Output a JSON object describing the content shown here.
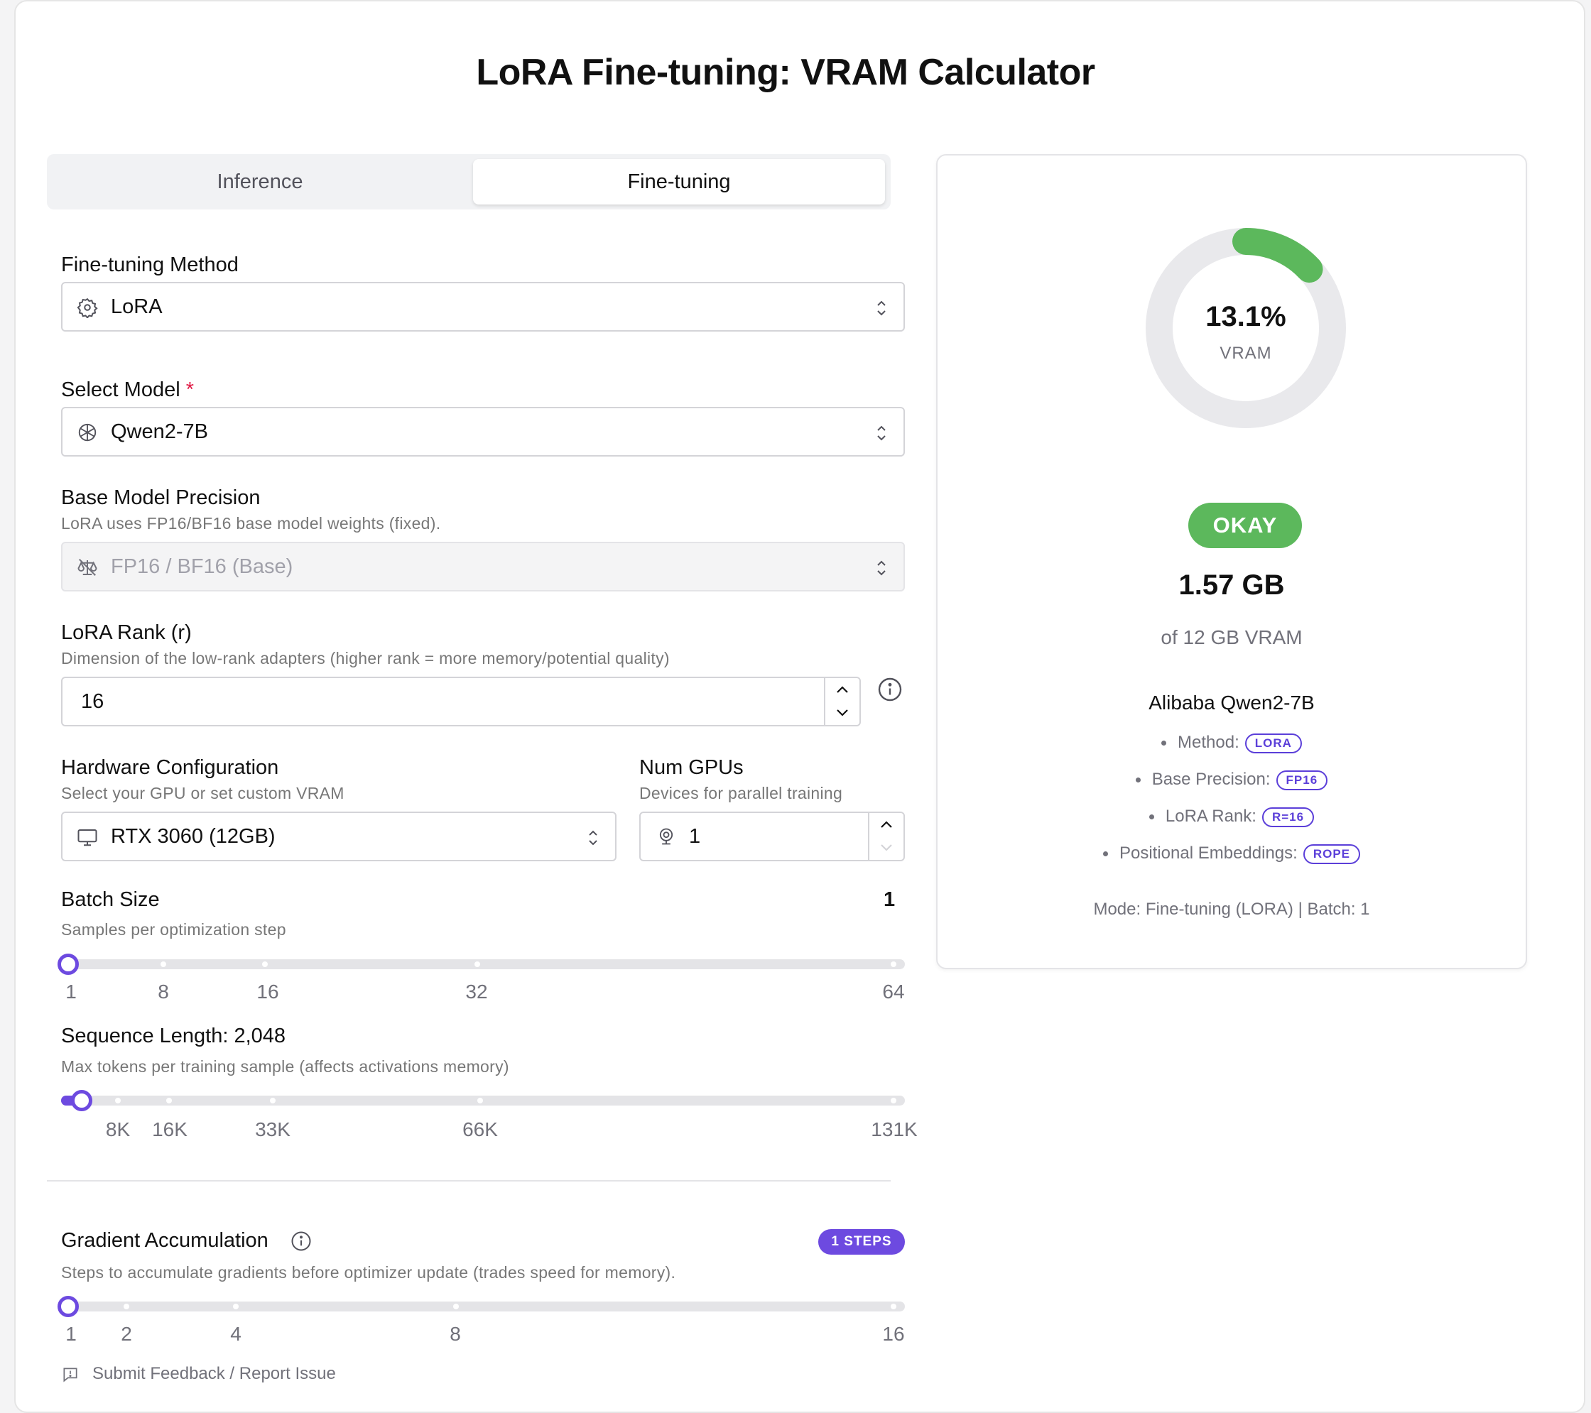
{
  "title": "LoRA Fine-tuning: VRAM Calculator",
  "tabs": [
    {
      "label": "Inference",
      "active": false
    },
    {
      "label": "Fine-tuning",
      "active": true
    }
  ],
  "method": {
    "label": "Fine-tuning Method",
    "value": "LoRA",
    "icon": "gear-icon"
  },
  "model": {
    "label": "Select Model",
    "required_mark": "*",
    "value": "Qwen2-7B",
    "icon": "openai-knot-icon"
  },
  "precision": {
    "label": "Base Model Precision",
    "help": "LoRA uses FP16/BF16 base model weights (fixed).",
    "value": "FP16 / BF16 (Base)",
    "icon": "scale-off-icon"
  },
  "rank": {
    "label": "LoRA Rank (r)",
    "help": "Dimension of the low-rank adapters (higher rank = more memory/potential quality)",
    "value": "16"
  },
  "hardware": {
    "label": "Hardware Configuration",
    "help": "Select your GPU or set custom VRAM",
    "value": "RTX 3060 (12GB)",
    "icon": "monitor-icon"
  },
  "gpus": {
    "label": "Num GPUs",
    "help": "Devices for parallel training",
    "value": "1"
  },
  "batch": {
    "label": "Batch Size",
    "help": "Samples per optimization step",
    "value": "1",
    "ticks": [
      "1",
      "8",
      "16",
      "32",
      "64"
    ],
    "level": 0
  },
  "seq": {
    "label": "Sequence Length: 2,048",
    "help": "Max tokens per training sample (affects activations memory)",
    "ticks": [
      "8K",
      "16K",
      "33K",
      "66K",
      "131K"
    ],
    "level": 0.016
  },
  "grad": {
    "label": "Gradient Accumulation",
    "help": "Steps to accumulate gradients before optimizer update (trades speed for memory).",
    "badge": "1 STEPS",
    "ticks": [
      "1",
      "2",
      "4",
      "8",
      "16"
    ],
    "level": 0
  },
  "feedback": "Submit Feedback / Report Issue",
  "result": {
    "percent_text": "13.1%",
    "percent": 0.131,
    "gauge_label": "VRAM",
    "status": "OKAY",
    "used": "1.57 GB",
    "total": "of 12 GB VRAM",
    "model_name": "Alibaba Qwen2-7B",
    "details": [
      {
        "label": "Method:",
        "tag": "LORA"
      },
      {
        "label": "Base Precision:",
        "tag": "FP16"
      },
      {
        "label": "LoRA Rank:",
        "tag": "R=16"
      },
      {
        "label": "Positional Embeddings:",
        "tag": "ROPE"
      }
    ],
    "mode_line": "Mode: Fine-tuning (LORA) | Batch: 1"
  },
  "colors": {
    "accent": "#6d4ae0",
    "ok": "#5cb85c",
    "gauge_track": "#e9e9ec"
  }
}
